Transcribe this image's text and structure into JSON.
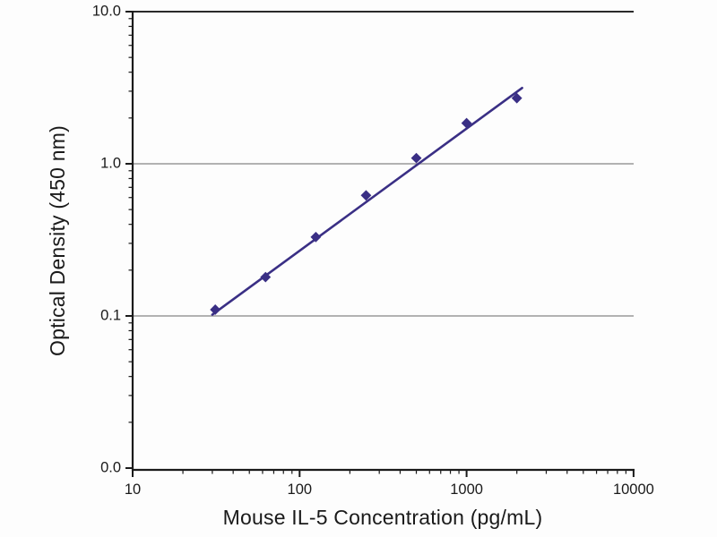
{
  "chart_data": {
    "type": "scatter",
    "title": "",
    "xlabel": "Mouse IL-5 Concentration (pg/mL)",
    "ylabel": "Optical Density (450 nm)",
    "x_scale": "log",
    "y_scale": "log",
    "xlim": [
      10,
      10000
    ],
    "ylim_decades": [
      0.01,
      10
    ],
    "x_ticks": [
      10,
      100,
      1000,
      10000
    ],
    "x_tick_labels": [
      "10",
      "100",
      "1000",
      "10000"
    ],
    "y_ticks": [
      10,
      1,
      0.1,
      0.01
    ],
    "y_tick_labels": [
      "10.0",
      "1.0",
      "0.1",
      "0.0"
    ],
    "gridlines_y_values": [
      1,
      0.1
    ],
    "top_border_value": 10,
    "points": [
      {
        "x": 31.25,
        "y": 0.11
      },
      {
        "x": 62.5,
        "y": 0.18
      },
      {
        "x": 125,
        "y": 0.33
      },
      {
        "x": 250,
        "y": 0.62
      },
      {
        "x": 500,
        "y": 1.09
      },
      {
        "x": 1000,
        "y": 1.85
      },
      {
        "x": 2000,
        "y": 2.7
      }
    ],
    "fit_line": {
      "x1": 30,
      "y1": 0.102,
      "x2": 2150,
      "y2": 3.15
    },
    "legend": "none",
    "colors": {
      "series": "#3a2f85",
      "gridline": "#9a9a9a",
      "axis": "#1a1a1a",
      "background": "#fdfdfd"
    }
  }
}
